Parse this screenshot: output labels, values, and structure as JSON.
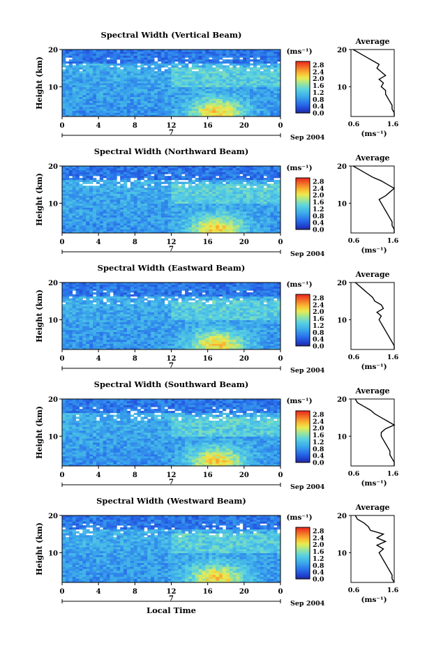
{
  "figure": {
    "xlabel": "Local Time",
    "colorbar_unit": "(ms⁻¹)",
    "colorbar_ticks": [
      "2.8",
      "2.4",
      "2.0",
      "1.6",
      "1.2",
      "0.8",
      "0.4",
      "0.0"
    ],
    "date_label": "Sep 2004",
    "day_label": "7",
    "ylabel": "Height (km)",
    "avg_title": "Average",
    "avg_xlabel": "(ms⁻¹)",
    "avg_xticks": [
      "0.6",
      "1.6"
    ]
  },
  "chart_data": [
    {
      "type": "heatmap",
      "title": "Spectral Width (Vertical Beam)",
      "x": [
        0,
        4,
        8,
        12,
        16,
        20,
        0
      ],
      "y_ticks": [
        10,
        20
      ],
      "ylim": [
        2,
        20
      ],
      "xlim": [
        0,
        24
      ],
      "colorbar_range": [
        0.0,
        3.0
      ],
      "average_profile": {
        "height_km": [
          2,
          3,
          4,
          5,
          6,
          7,
          8,
          9,
          10,
          11,
          12,
          13,
          14,
          15,
          16,
          17,
          18,
          19,
          20
        ],
        "width_ms": [
          1.6,
          1.6,
          1.55,
          1.55,
          1.5,
          1.45,
          1.4,
          1.4,
          1.3,
          1.35,
          1.25,
          1.4,
          1.3,
          1.2,
          1.25,
          1.1,
          0.95,
          0.8,
          0.65
        ]
      }
    },
    {
      "type": "heatmap",
      "title": "Spectral Width (Northward Beam)",
      "x": [
        0,
        4,
        8,
        12,
        16,
        20,
        0
      ],
      "y_ticks": [
        10,
        20
      ],
      "ylim": [
        2,
        20
      ],
      "xlim": [
        0,
        24
      ],
      "colorbar_range": [
        0.0,
        3.0
      ],
      "average_profile": {
        "height_km": [
          2,
          3,
          4,
          5,
          6,
          7,
          8,
          9,
          10,
          11,
          12,
          13,
          14,
          15,
          16,
          17,
          18,
          19,
          20
        ],
        "width_ms": [
          1.6,
          1.6,
          1.55,
          1.55,
          1.5,
          1.45,
          1.4,
          1.35,
          1.3,
          1.25,
          1.4,
          1.5,
          1.6,
          1.45,
          1.3,
          1.1,
          0.95,
          0.8,
          0.65
        ]
      }
    },
    {
      "type": "heatmap",
      "title": "Spectral Width (Eastward Beam)",
      "x": [
        0,
        4,
        8,
        12,
        16,
        20,
        0
      ],
      "y_ticks": [
        10,
        20
      ],
      "ylim": [
        2,
        20
      ],
      "xlim": [
        0,
        24
      ],
      "colorbar_range": [
        0.0,
        3.0
      ],
      "average_profile": {
        "height_km": [
          2,
          3,
          4,
          5,
          6,
          7,
          8,
          9,
          10,
          11,
          12,
          13,
          14,
          15,
          16,
          17,
          18,
          19,
          20
        ],
        "width_ms": [
          1.6,
          1.6,
          1.55,
          1.5,
          1.45,
          1.4,
          1.35,
          1.3,
          1.25,
          1.3,
          1.2,
          1.35,
          1.3,
          1.15,
          1.1,
          1.0,
          0.9,
          0.8,
          0.7
        ]
      }
    },
    {
      "type": "heatmap",
      "title": "Spectral Width (Southward Beam)",
      "x": [
        0,
        4,
        8,
        12,
        16,
        20,
        0
      ],
      "y_ticks": [
        10,
        20
      ],
      "ylim": [
        2,
        20
      ],
      "xlim": [
        0,
        24
      ],
      "colorbar_range": [
        0.0,
        3.0
      ],
      "average_profile": {
        "height_km": [
          2,
          3,
          4,
          5,
          6,
          7,
          8,
          9,
          10,
          11,
          12,
          13,
          14,
          15,
          16,
          17,
          18,
          19,
          20
        ],
        "width_ms": [
          1.6,
          1.6,
          1.55,
          1.5,
          1.5,
          1.45,
          1.4,
          1.35,
          1.3,
          1.3,
          1.4,
          1.6,
          1.45,
          1.3,
          1.15,
          1.05,
          0.9,
          0.75,
          0.7
        ]
      }
    },
    {
      "type": "heatmap",
      "title": "Spectral Width (Westward Beam)",
      "x": [
        0,
        4,
        8,
        12,
        16,
        20,
        0
      ],
      "y_ticks": [
        10,
        20
      ],
      "ylim": [
        2,
        20
      ],
      "xlim": [
        0,
        24
      ],
      "colorbar_range": [
        0.0,
        3.0
      ],
      "average_profile": {
        "height_km": [
          2,
          3,
          4,
          5,
          6,
          7,
          8,
          9,
          10,
          11,
          12,
          13,
          14,
          15,
          16,
          17,
          18,
          19,
          20
        ],
        "width_ms": [
          1.6,
          1.55,
          1.55,
          1.5,
          1.45,
          1.4,
          1.35,
          1.3,
          1.25,
          1.35,
          1.2,
          1.4,
          1.2,
          1.35,
          1.05,
          1.0,
          0.9,
          0.75,
          0.7
        ]
      }
    }
  ]
}
